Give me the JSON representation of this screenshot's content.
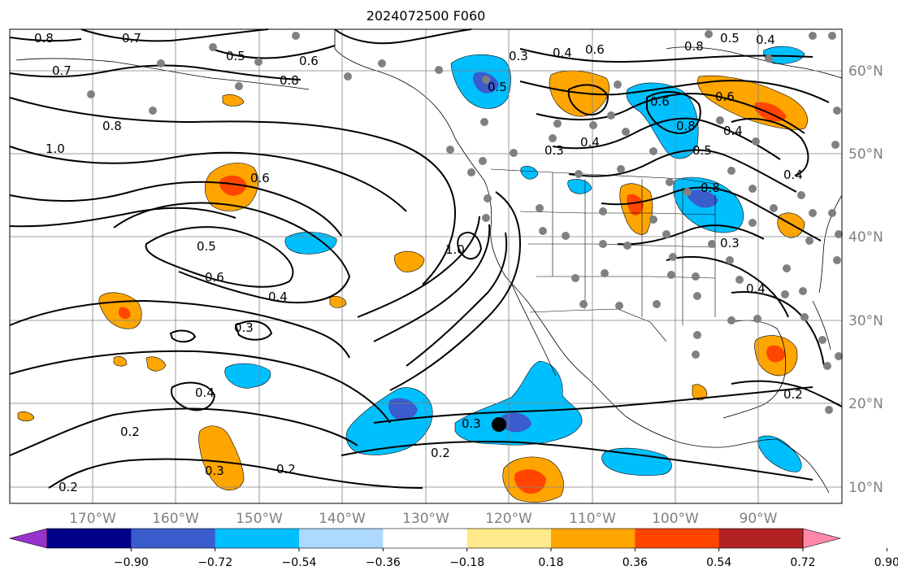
{
  "title": "2024072500 F060",
  "map": {
    "lat_labels": [
      "60°N",
      "50°N",
      "40°N",
      "30°N",
      "20°N",
      "10°N"
    ],
    "lon_labels": [
      "170°W",
      "160°W",
      "150°W",
      "140°W",
      "130°W",
      "120°W",
      "110°W",
      "100°W",
      "90°W"
    ],
    "contour_labels": [
      "0.8",
      "0.7",
      "0.5",
      "0.6",
      "0.7",
      "0.8",
      "1.0",
      "0.8",
      "0.6",
      "0.5",
      "0.6",
      "0.4",
      "0.3",
      "0.4",
      "0.2",
      "0.3",
      "0.2",
      "0.2",
      "0.3",
      "0.2",
      "0.5",
      "0.3",
      "0.4",
      "0.6",
      "0.8",
      "0.5",
      "0.4",
      "0.3",
      "0.6",
      "0.8",
      "0.6",
      "0.5",
      "0.4",
      "0.4",
      "0.8",
      "0.3",
      "0.4",
      "0.2",
      "0.4",
      "1.0"
    ],
    "marker": "forecast-position",
    "station_dots": "gray"
  },
  "colorbar": {
    "ticks": [
      "−0.90",
      "−0.72",
      "−0.54",
      "−0.36",
      "−0.18",
      "0.18",
      "0.36",
      "0.54",
      "0.72",
      "0.90"
    ],
    "colors": [
      "#9932cc",
      "#00008b",
      "#3a5ccc",
      "#00bfff",
      "#add8ff",
      "#ffffff",
      "#ffe98a",
      "#ffa500",
      "#ff4500",
      "#b22222",
      "#ff88aa"
    ],
    "levels": [
      -0.9,
      -0.72,
      -0.54,
      -0.36,
      -0.18,
      0.18,
      0.36,
      0.54,
      0.72,
      0.9
    ]
  },
  "colors": {
    "grid": "#808080",
    "contour": "#000000",
    "dot": "#808080"
  }
}
